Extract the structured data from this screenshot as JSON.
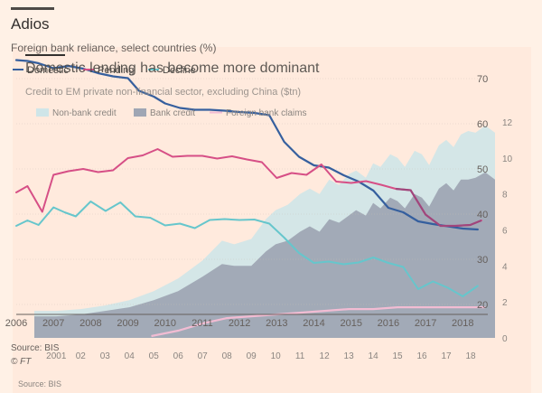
{
  "header": {
    "title": "Adios",
    "subtitle": "Foreign bank reliance, select countries (%)",
    "overlay_title": "Domestic lending has become more dominant",
    "overlay_subtitle": "Credit to EM private non-financial sector, excluding China ($tn)"
  },
  "footer": {
    "source": "Source: BIS",
    "credit": "© FT",
    "overlay_source": "Source: BIS"
  },
  "colors": {
    "background": "#fff1e6",
    "chart_panel": "#ffe4d6",
    "nonbank_area": "#cfe5e8",
    "bank_area": "#9fa6b4",
    "foreign_line": "#f2a1bd",
    "domestic_line": "#355f9e",
    "pink_line": "#d64f86",
    "cyan_line": "#66c6cc",
    "magenta_line": "#a0467c",
    "light_pink_line": "#f2bcd3"
  },
  "chart_data": [
    {
      "type": "line",
      "title": "Foreign bank reliance, select countries (%)",
      "legend": [
        "Domestic",
        "Pending",
        "Decline"
      ],
      "legend_placement": "top-left",
      "x_ticks": [
        "2006",
        "2007",
        "2008",
        "2009",
        "2010",
        "2011",
        "2012",
        "2013",
        "2014",
        "2015",
        "2016",
        "2017",
        "2018"
      ],
      "xlim": [
        2006,
        2018.6
      ],
      "ylim": [
        15,
        75
      ],
      "y_ticks": [
        {
          "value": 70,
          "label": "70"
        },
        {
          "value": 60,
          "label": "60"
        },
        {
          "value": 50,
          "label": "50"
        },
        {
          "value": 40,
          "label": "40"
        },
        {
          "value": 30,
          "label": "30"
        },
        {
          "value": 20,
          "label": "20"
        }
      ],
      "series": [
        {
          "name": "Domestic",
          "color": "#355f9e",
          "x": [
            2006,
            2006.3,
            2006.6,
            2007,
            2007.4,
            2007.8,
            2008.2,
            2008.6,
            2009,
            2009.3,
            2009.7,
            2010,
            2010.4,
            2010.8,
            2011.2,
            2011.6,
            2012,
            2012.4,
            2012.8,
            2013.2,
            2013.6,
            2014,
            2014.4,
            2014.8,
            2015.2,
            2015.6,
            2016,
            2016.4,
            2016.8,
            2017.2,
            2017.6,
            2018,
            2018.4
          ],
          "values": [
            74.1,
            73.9,
            73.4,
            72.3,
            72.8,
            72.2,
            71.2,
            70.5,
            70.1,
            67.3,
            66.0,
            64.5,
            63.5,
            63.1,
            63.1,
            62.9,
            62.6,
            62.4,
            61.9,
            56.0,
            52.7,
            50.8,
            50.3,
            48.6,
            47.2,
            45.2,
            41.4,
            40.4,
            38.4,
            37.8,
            37.3,
            36.8,
            36.6
          ]
        },
        {
          "name": "Pending",
          "color": "#d64f86",
          "x": [
            2006,
            2006.3,
            2006.7,
            2007,
            2007.4,
            2007.8,
            2008.2,
            2008.6,
            2009,
            2009.4,
            2009.8,
            2010.2,
            2010.6,
            2011,
            2011.4,
            2011.8,
            2012.2,
            2012.6,
            2013,
            2013.4,
            2013.8,
            2014.2,
            2014.6,
            2015,
            2015.4,
            2015.8,
            2016.2,
            2016.6,
            2017,
            2017.4,
            2017.8,
            2018.2,
            2018.5
          ],
          "values": [
            44.8,
            46.2,
            40.5,
            48.7,
            49.5,
            50.0,
            49.3,
            49.7,
            52.4,
            53.0,
            54.4,
            52.7,
            52.9,
            52.9,
            52.3,
            52.8,
            52.1,
            51.5,
            48.0,
            49.1,
            48.7,
            51.0,
            47.2,
            46.9,
            47.3,
            46.5,
            45.6,
            45.3,
            39.9,
            37.4,
            37.4,
            37.6,
            38.6
          ]
        },
        {
          "name": "Decline",
          "color": "#66c6cc",
          "x": [
            2006,
            2006.3,
            2006.6,
            2007,
            2007.3,
            2007.6,
            2008,
            2008.4,
            2008.8,
            2009.2,
            2009.6,
            2010,
            2010.4,
            2010.8,
            2011.2,
            2011.6,
            2012,
            2012.4,
            2012.8,
            2013.2,
            2013.6,
            2014,
            2014.4,
            2014.8,
            2015.2,
            2015.6,
            2016,
            2016.4,
            2016.8,
            2017.2,
            2017.6,
            2018,
            2018.4
          ],
          "values": [
            37.4,
            38.6,
            37.6,
            41.5,
            40.4,
            39.5,
            42.8,
            40.7,
            42.6,
            39.5,
            39.2,
            37.5,
            37.9,
            36.9,
            38.7,
            38.9,
            38.7,
            38.8,
            37.9,
            34.8,
            31.4,
            29.2,
            29.5,
            28.9,
            29.3,
            30.4,
            29.2,
            28.3,
            23.4,
            25.1,
            23.7,
            21.8,
            24.1
          ]
        }
      ]
    },
    {
      "type": "area",
      "title": "Domestic lending has become more dominant",
      "subtitle": "Credit to EM private non-financial sector, excluding China ($tn)",
      "legend": [
        "Non-bank credit",
        "Bank credit",
        "Foreign bank claims"
      ],
      "legend_placement": "top-left",
      "x_ticks": [
        "2001",
        "02",
        "03",
        "04",
        "05",
        "06",
        "07",
        "08",
        "09",
        "10",
        "11",
        "12",
        "13",
        "14",
        "15",
        "16",
        "17",
        "18"
      ],
      "xlim": [
        2000.1,
        2019.0
      ],
      "ylim": [
        0,
        12
      ],
      "y_ticks": [
        {
          "value": 12,
          "label": "12"
        },
        {
          "value": 10,
          "label": "10"
        },
        {
          "value": 8,
          "label": "8"
        },
        {
          "value": 6,
          "label": "6"
        },
        {
          "value": 4,
          "label": "4"
        },
        {
          "value": 2,
          "label": "2"
        },
        {
          "value": 0,
          "label": "0"
        }
      ],
      "series": [
        {
          "name": "Non-bank credit",
          "color": "#cfe5e8",
          "stacking": "total",
          "x": [
            2000.1,
            2001,
            2002,
            2003,
            2004,
            2005,
            2006,
            2007,
            2007.8,
            2008.3,
            2009,
            2009.6,
            2010,
            2010.5,
            2011,
            2011.4,
            2011.8,
            2012.2,
            2012.6,
            2013,
            2013.3,
            2013.7,
            2014,
            2014.3,
            2014.7,
            2015,
            2015.3,
            2015.7,
            2016,
            2016.3,
            2016.7,
            2017,
            2017.3,
            2017.6,
            2017.9,
            2018.2,
            2018.6,
            2019.0
          ],
          "values": [
            1.5,
            1.5,
            1.6,
            1.8,
            2.1,
            2.6,
            3.3,
            4.3,
            5.4,
            5.2,
            5.5,
            6.6,
            7.1,
            7.4,
            8.0,
            8.3,
            8.0,
            8.8,
            8.5,
            9.1,
            9.3,
            8.9,
            9.7,
            9.5,
            10.2,
            10.0,
            9.5,
            10.4,
            10.2,
            9.6,
            10.7,
            11.0,
            10.6,
            11.3,
            11.5,
            11.4,
            11.8,
            11.4
          ]
        },
        {
          "name": "Bank credit",
          "color": "#9fa6b4",
          "x": [
            2000.1,
            2001,
            2002,
            2003,
            2004,
            2005,
            2006,
            2007,
            2007.8,
            2008.3,
            2009,
            2009.6,
            2010,
            2010.5,
            2011,
            2011.4,
            2011.8,
            2012.2,
            2012.6,
            2013,
            2013.3,
            2013.7,
            2014,
            2014.3,
            2014.7,
            2015,
            2015.3,
            2015.7,
            2016,
            2016.3,
            2016.7,
            2017,
            2017.3,
            2017.6,
            2017.9,
            2018.2,
            2018.6,
            2019.0
          ],
          "values": [
            1.2,
            1.2,
            1.3,
            1.5,
            1.7,
            2.1,
            2.6,
            3.4,
            4.1,
            4.0,
            4.0,
            4.8,
            5.2,
            5.4,
            5.9,
            6.2,
            5.9,
            6.6,
            6.4,
            6.8,
            7.1,
            6.8,
            7.5,
            7.2,
            7.8,
            7.6,
            7.2,
            8.0,
            7.8,
            7.3,
            8.3,
            8.6,
            8.2,
            8.8,
            8.8,
            8.9,
            9.2,
            8.8
          ]
        },
        {
          "name": "Foreign bank claims",
          "color": "#f2bcd3",
          "x": [
            2004.9,
            2006,
            2007,
            2008,
            2009,
            2010,
            2011,
            2012,
            2013,
            2014,
            2015,
            2016,
            2017,
            2018,
            2018.6
          ],
          "values": [
            0.1,
            0.4,
            0.8,
            1.1,
            1.2,
            1.3,
            1.4,
            1.5,
            1.6,
            1.6,
            1.7,
            1.7,
            1.7,
            1.7,
            1.7
          ]
        }
      ]
    }
  ]
}
